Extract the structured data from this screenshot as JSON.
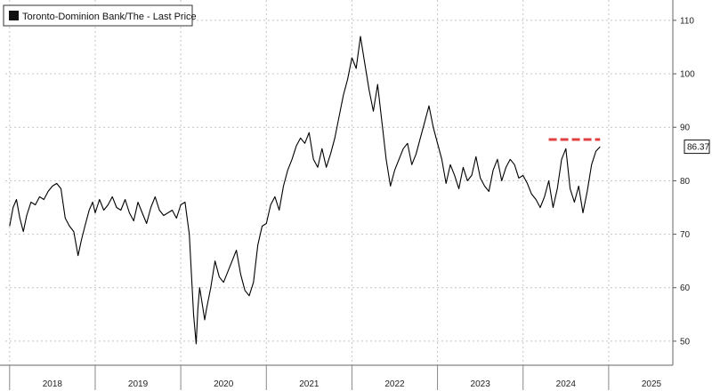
{
  "chart_data": {
    "type": "line",
    "title": "",
    "xlabel": "",
    "ylabel": "",
    "x_tick_labels": [
      "2018",
      "2019",
      "2020",
      "2021",
      "2022",
      "2023",
      "2024",
      "2025"
    ],
    "y_ticks": [
      50,
      60,
      70,
      80,
      90,
      100,
      110
    ],
    "y_tick_labels": [
      "50",
      "60",
      "70",
      "80",
      "90",
      "100",
      "110"
    ],
    "xlim": [
      2017.95,
      2025.75
    ],
    "ylim": [
      45.5,
      113.8
    ],
    "grid": true,
    "legend_position": "top-left",
    "y_axis_side": "right",
    "series": [
      {
        "name": "Toronto-Dominion Bank/The - Last Price",
        "color": "#000000",
        "x": [
          2018.0,
          2018.04,
          2018.08,
          2018.12,
          2018.16,
          2018.2,
          2018.25,
          2018.3,
          2018.35,
          2018.4,
          2018.45,
          2018.5,
          2018.55,
          2018.6,
          2018.65,
          2018.7,
          2018.75,
          2018.8,
          2018.84,
          2018.88,
          2018.93,
          2018.97,
          2019.0,
          2019.05,
          2019.1,
          2019.15,
          2019.2,
          2019.25,
          2019.3,
          2019.35,
          2019.4,
          2019.45,
          2019.5,
          2019.55,
          2019.6,
          2019.65,
          2019.7,
          2019.75,
          2019.8,
          2019.85,
          2019.9,
          2019.95,
          2020.0,
          2020.05,
          2020.1,
          2020.15,
          2020.18,
          2020.2,
          2020.22,
          2020.25,
          2020.28,
          2020.3,
          2020.35,
          2020.4,
          2020.45,
          2020.5,
          2020.55,
          2020.6,
          2020.65,
          2020.7,
          2020.75,
          2020.8,
          2020.85,
          2020.9,
          2020.95,
          2021.0,
          2021.05,
          2021.1,
          2021.15,
          2021.2,
          2021.25,
          2021.3,
          2021.35,
          2021.4,
          2021.45,
          2021.5,
          2021.55,
          2021.6,
          2021.65,
          2021.7,
          2021.75,
          2021.8,
          2021.85,
          2021.9,
          2021.95,
          2022.0,
          2022.05,
          2022.1,
          2022.15,
          2022.2,
          2022.25,
          2022.3,
          2022.35,
          2022.4,
          2022.45,
          2022.5,
          2022.55,
          2022.6,
          2022.65,
          2022.7,
          2022.75,
          2022.8,
          2022.85,
          2022.9,
          2022.95,
          2023.0,
          2023.05,
          2023.1,
          2023.15,
          2023.2,
          2023.25,
          2023.3,
          2023.35,
          2023.4,
          2023.45,
          2023.5,
          2023.55,
          2023.6,
          2023.65,
          2023.7,
          2023.75,
          2023.8,
          2023.85,
          2023.9,
          2023.95,
          2024.0,
          2024.05,
          2024.1,
          2024.15,
          2024.2,
          2024.25,
          2024.3,
          2024.35,
          2024.4,
          2024.45,
          2024.5,
          2024.55,
          2024.6,
          2024.65,
          2024.7,
          2024.75,
          2024.8,
          2024.85,
          2024.9
        ],
        "y": [
          71.5,
          75.0,
          76.5,
          73.0,
          70.5,
          73.5,
          76.0,
          75.5,
          77.0,
          76.5,
          78.0,
          79.0,
          79.5,
          78.5,
          73.0,
          71.5,
          70.5,
          66.0,
          69.0,
          71.5,
          74.5,
          76.0,
          74.0,
          76.5,
          74.5,
          75.5,
          77.0,
          75.0,
          74.5,
          76.5,
          74.0,
          72.5,
          76.0,
          74.0,
          72.0,
          75.0,
          77.0,
          74.5,
          73.5,
          74.0,
          74.5,
          73.0,
          75.5,
          76.0,
          70.0,
          55.0,
          49.5,
          56.0,
          60.0,
          57.0,
          54.0,
          56.0,
          60.0,
          65.0,
          62.0,
          61.0,
          63.0,
          65.0,
          67.0,
          62.5,
          59.5,
          58.5,
          61.0,
          68.0,
          71.5,
          72.0,
          75.5,
          77.0,
          74.5,
          79.0,
          82.0,
          84.0,
          86.5,
          88.0,
          87.0,
          89.0,
          84.0,
          82.5,
          86.0,
          82.5,
          85.0,
          88.0,
          92.0,
          96.0,
          99.0,
          103.0,
          101.0,
          107.0,
          102.0,
          97.0,
          93.0,
          98.0,
          91.0,
          84.0,
          79.0,
          82.0,
          84.0,
          86.0,
          87.0,
          83.0,
          85.0,
          88.0,
          91.0,
          94.0,
          90.0,
          87.0,
          84.0,
          79.5,
          83.0,
          81.0,
          78.5,
          82.5,
          80.0,
          81.0,
          84.5,
          80.5,
          79.0,
          78.0,
          82.0,
          84.0,
          80.0,
          82.5,
          84.0,
          83.0,
          80.5,
          81.0,
          79.5,
          77.5,
          76.5,
          75.0,
          77.0,
          80.0,
          75.0,
          78.5,
          84.0,
          86.0,
          78.5,
          76.0,
          79.0,
          74.0,
          78.0,
          83.0,
          85.5,
          86.37
        ],
        "last_value_label": "86.37"
      }
    ],
    "annotations": [
      {
        "type": "dashed-line",
        "color": "#e04040",
        "y": 87.7,
        "x_start": 2024.3,
        "x_end": 2024.9
      }
    ]
  }
}
